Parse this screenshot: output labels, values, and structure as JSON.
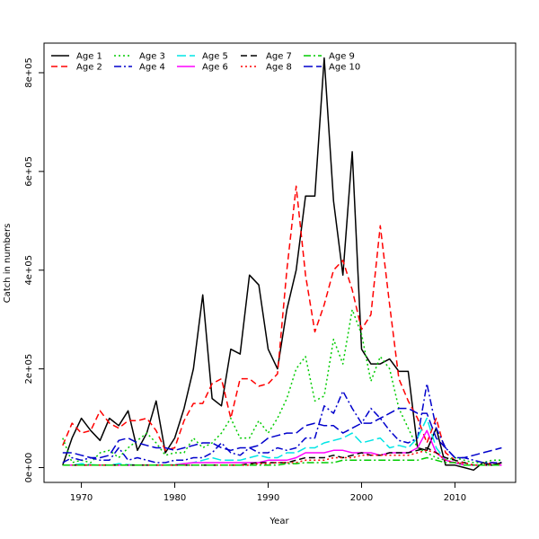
{
  "chart_data": {
    "type": "line",
    "title": "",
    "xlabel": "Year",
    "ylabel": "Catch in numbers",
    "xlim": [
      1966,
      2016.5
    ],
    "ylim": [
      -30000,
      860000
    ],
    "x_ticks": [
      1970,
      1980,
      1990,
      2000,
      2010
    ],
    "y_ticks": [
      0,
      200000,
      400000,
      600000,
      800000
    ],
    "y_tick_labels": [
      "0e+00",
      "2e+05",
      "4e+05",
      "6e+05",
      "8e+05"
    ],
    "grid": false,
    "legend_position": "top-left",
    "x": [
      1968,
      1969,
      1970,
      1971,
      1972,
      1973,
      1974,
      1975,
      1976,
      1977,
      1978,
      1979,
      1980,
      1981,
      1982,
      1983,
      1984,
      1985,
      1986,
      1987,
      1988,
      1989,
      1990,
      1991,
      1992,
      1993,
      1994,
      1995,
      1996,
      1997,
      1998,
      1999,
      2000,
      2001,
      2002,
      2003,
      2004,
      2005,
      2006,
      2007,
      2008,
      2009,
      2010,
      2011,
      2012,
      2013,
      2014,
      2015
    ],
    "series": [
      {
        "name": "Age 1",
        "color": "#000000",
        "dash": "solid",
        "values": [
          5000,
          60000,
          100000,
          75000,
          55000,
          100000,
          85000,
          115000,
          35000,
          70000,
          135000,
          30000,
          60000,
          120000,
          200000,
          350000,
          140000,
          125000,
          240000,
          230000,
          390000,
          370000,
          240000,
          200000,
          320000,
          400000,
          550000,
          550000,
          830000,
          540000,
          390000,
          640000,
          240000,
          210000,
          210000,
          220000,
          195000,
          195000,
          40000,
          35000,
          80000,
          5000,
          5000,
          0,
          -5000,
          10000,
          5000,
          10000
        ]
      },
      {
        "name": "Age 2",
        "color": "#ff0000",
        "dash": "7,4",
        "values": [
          45000,
          90000,
          70000,
          75000,
          115000,
          90000,
          80000,
          95000,
          95000,
          100000,
          75000,
          35000,
          40000,
          95000,
          130000,
          130000,
          170000,
          180000,
          100000,
          180000,
          180000,
          165000,
          170000,
          190000,
          400000,
          570000,
          390000,
          275000,
          330000,
          400000,
          420000,
          360000,
          280000,
          310000,
          490000,
          330000,
          180000,
          135000,
          100000,
          50000,
          100000,
          30000,
          15000,
          5000,
          5000,
          5000,
          10000,
          5000
        ]
      },
      {
        "name": "Age 3",
        "color": "#00cc00",
        "dash": "2,3",
        "values": [
          60000,
          10000,
          15000,
          10000,
          30000,
          35000,
          20000,
          40000,
          55000,
          70000,
          50000,
          25000,
          30000,
          30000,
          60000,
          40000,
          50000,
          70000,
          100000,
          60000,
          60000,
          95000,
          70000,
          100000,
          140000,
          200000,
          225000,
          135000,
          145000,
          260000,
          210000,
          320000,
          270000,
          175000,
          225000,
          200000,
          120000,
          80000,
          40000,
          30000,
          20000,
          15000,
          20000,
          15000,
          10000,
          10000,
          15000,
          15000
        ]
      },
      {
        "name": "Age 4",
        "color": "#0000cc",
        "dash": "8,3,2,3",
        "values": [
          10000,
          20000,
          15000,
          20000,
          15000,
          15000,
          40000,
          15000,
          20000,
          15000,
          10000,
          10000,
          15000,
          15000,
          20000,
          20000,
          30000,
          50000,
          30000,
          25000,
          40000,
          30000,
          30000,
          40000,
          35000,
          40000,
          60000,
          60000,
          125000,
          110000,
          155000,
          120000,
          90000,
          120000,
          100000,
          75000,
          55000,
          50000,
          60000,
          170000,
          80000,
          40000,
          20000,
          20000,
          15000,
          10000,
          10000,
          10000
        ]
      },
      {
        "name": "Age 5",
        "color": "#00e5e5",
        "dash": "10,4",
        "values": [
          5000,
          5000,
          8000,
          6000,
          5000,
          5000,
          8000,
          6000,
          5000,
          5000,
          5000,
          5000,
          6000,
          8000,
          10000,
          15000,
          20000,
          15000,
          15000,
          15000,
          20000,
          25000,
          20000,
          20000,
          30000,
          30000,
          40000,
          40000,
          50000,
          55000,
          60000,
          70000,
          50000,
          55000,
          60000,
          40000,
          45000,
          40000,
          60000,
          100000,
          40000,
          15000,
          10000,
          5000,
          5000,
          5000,
          5000,
          5000
        ]
      },
      {
        "name": "Age 6",
        "color": "#ff00ff",
        "dash": "solid",
        "values": [
          5000,
          5000,
          5000,
          5000,
          5000,
          5000,
          5000,
          5000,
          5000,
          5000,
          5000,
          5000,
          5000,
          8000,
          10000,
          10000,
          10000,
          10000,
          10000,
          10000,
          10000,
          10000,
          15000,
          15000,
          15000,
          20000,
          30000,
          30000,
          30000,
          35000,
          35000,
          30000,
          30000,
          30000,
          25000,
          30000,
          30000,
          30000,
          40000,
          75000,
          30000,
          15000,
          10000,
          5000,
          5000,
          5000,
          5000,
          5000
        ]
      },
      {
        "name": "Age 7",
        "color": "#000000",
        "dash": "7,4",
        "values": [
          5000,
          5000,
          5000,
          5000,
          5000,
          5000,
          5000,
          5000,
          5000,
          5000,
          5000,
          5000,
          5000,
          5000,
          5000,
          5000,
          5000,
          5000,
          5000,
          5000,
          8000,
          10000,
          10000,
          10000,
          10000,
          15000,
          20000,
          20000,
          20000,
          25000,
          20000,
          25000,
          30000,
          25000,
          25000,
          30000,
          30000,
          30000,
          35000,
          40000,
          30000,
          20000,
          15000,
          10000,
          5000,
          5000,
          5000,
          10000
        ]
      },
      {
        "name": "Age 8",
        "color": "#ff0000",
        "dash": "2,3",
        "values": [
          5000,
          5000,
          5000,
          5000,
          5000,
          5000,
          5000,
          5000,
          5000,
          5000,
          5000,
          5000,
          5000,
          5000,
          5000,
          5000,
          5000,
          5000,
          5000,
          5000,
          5000,
          8000,
          8000,
          10000,
          10000,
          10000,
          15000,
          15000,
          15000,
          20000,
          20000,
          20000,
          25000,
          25000,
          25000,
          25000,
          25000,
          25000,
          30000,
          35000,
          30000,
          15000,
          10000,
          10000,
          5000,
          5000,
          5000,
          5000
        ]
      },
      {
        "name": "Age 9",
        "color": "#00cc00",
        "dash": "8,3,2,3",
        "values": [
          5000,
          5000,
          5000,
          5000,
          5000,
          5000,
          5000,
          5000,
          5000,
          5000,
          5000,
          5000,
          5000,
          5000,
          5000,
          5000,
          5000,
          5000,
          5000,
          5000,
          5000,
          5000,
          5000,
          5000,
          8000,
          8000,
          10000,
          10000,
          10000,
          10000,
          15000,
          15000,
          15000,
          15000,
          15000,
          15000,
          15000,
          15000,
          15000,
          20000,
          15000,
          10000,
          10000,
          5000,
          5000,
          5000,
          5000,
          5000
        ]
      },
      {
        "name": "Age 10",
        "color": "#0000cc",
        "dash": "10,4",
        "values": [
          30000,
          30000,
          25000,
          20000,
          20000,
          25000,
          55000,
          60000,
          50000,
          45000,
          40000,
          40000,
          35000,
          40000,
          45000,
          50000,
          50000,
          40000,
          35000,
          40000,
          40000,
          45000,
          60000,
          65000,
          70000,
          70000,
          85000,
          90000,
          85000,
          85000,
          70000,
          80000,
          90000,
          90000,
          100000,
          110000,
          120000,
          120000,
          110000,
          110000,
          60000,
          40000,
          20000,
          20000,
          25000,
          30000,
          35000,
          40000
        ]
      }
    ]
  }
}
